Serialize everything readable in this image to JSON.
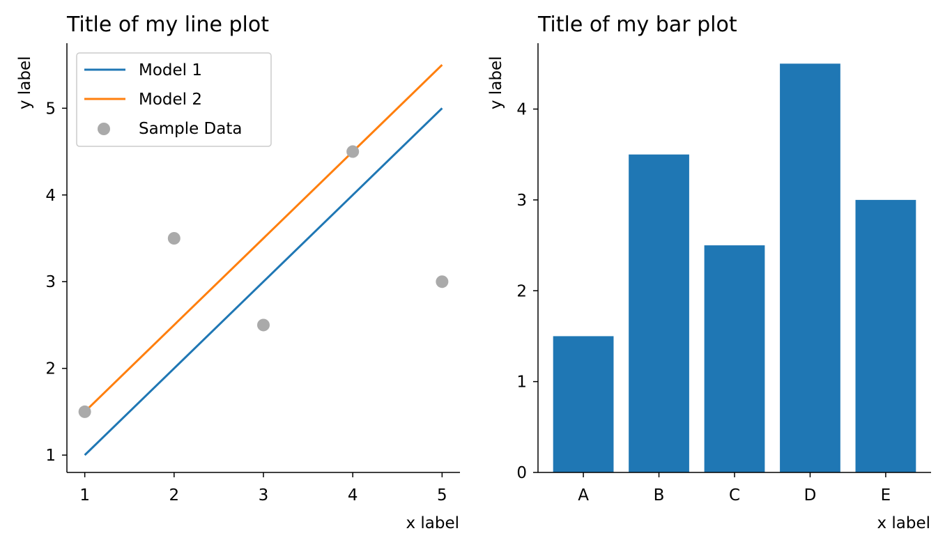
{
  "chart_data": [
    {
      "type": "line",
      "title": "Title of my line plot",
      "xlabel": "x label",
      "ylabel": "y label",
      "xlim": [
        0.8,
        5.2
      ],
      "ylim": [
        0.8,
        5.75
      ],
      "xticks": [
        "1",
        "2",
        "3",
        "4",
        "5"
      ],
      "yticks": [
        "1",
        "2",
        "3",
        "4",
        "5"
      ],
      "grid": false,
      "legend_position": "upper-left",
      "series": [
        {
          "name": "Model 1",
          "kind": "line",
          "color": "#1f77b4",
          "x": [
            1,
            2,
            3,
            4,
            5
          ],
          "y": [
            1,
            2,
            3,
            4,
            5
          ]
        },
        {
          "name": "Model 2",
          "kind": "line",
          "color": "#ff7f0e",
          "x": [
            1,
            2,
            3,
            4,
            5
          ],
          "y": [
            1.5,
            2.5,
            3.5,
            4.5,
            5.5
          ]
        },
        {
          "name": "Sample Data",
          "kind": "scatter",
          "color": "#aaaaaa",
          "x": [
            1,
            2,
            3,
            4,
            5
          ],
          "y": [
            1.5,
            3.5,
            2.5,
            4.5,
            3
          ]
        }
      ]
    },
    {
      "type": "bar",
      "title": "Title of my bar plot",
      "xlabel": "x label",
      "ylabel": "y label",
      "categories": [
        "A",
        "B",
        "C",
        "D",
        "E"
      ],
      "values": [
        1.5,
        3.5,
        2.5,
        4.5,
        3
      ],
      "color": "#1f77b4",
      "ylim": [
        0,
        4.725
      ],
      "yticks": [
        "0",
        "1",
        "2",
        "3",
        "4"
      ],
      "grid": false
    }
  ]
}
